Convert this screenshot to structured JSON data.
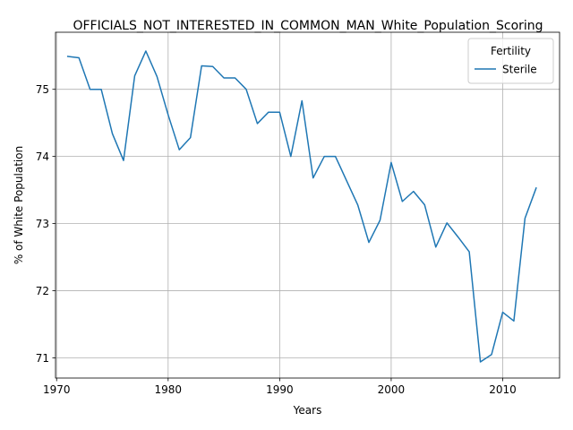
{
  "chart_data": {
    "type": "line",
    "title": "OFFICIALS_NOT_INTERESTED_IN_COMMON_MAN_White_Population_Scoring",
    "xlabel": "Years",
    "ylabel": "% of White Population",
    "xlim": [
      1969.9,
      2015.1
    ],
    "ylim": [
      70.7,
      75.85
    ],
    "xticks": [
      1970,
      1980,
      1990,
      2000,
      2010
    ],
    "yticks": [
      71,
      72,
      73,
      74,
      75
    ],
    "grid": true,
    "legend": {
      "title": "Fertility",
      "placement": "top-right"
    },
    "series": [
      {
        "name": "Sterile",
        "color": "#1f77b4",
        "x": [
          1971,
          1972,
          1973,
          1974,
          1975,
          1976,
          1977,
          1978,
          1979,
          1980,
          1981,
          1982,
          1983,
          1984,
          1985,
          1986,
          1987,
          1988,
          1989,
          1990,
          1991,
          1992,
          1993,
          1994,
          1995,
          1996,
          1997,
          1998,
          1999,
          2000,
          2001,
          2002,
          2003,
          2004,
          2005,
          2006,
          2007,
          2008,
          2009,
          2010,
          2011,
          2012,
          2013
        ],
        "y": [
          75.49,
          75.47,
          75.0,
          75.0,
          74.34,
          73.94,
          75.2,
          75.57,
          75.19,
          74.62,
          74.1,
          74.28,
          75.35,
          75.34,
          75.17,
          75.17,
          75.0,
          74.49,
          74.66,
          74.66,
          74.0,
          74.83,
          73.68,
          74.0,
          74.0,
          73.64,
          73.28,
          72.72,
          73.05,
          73.91,
          73.33,
          73.48,
          73.28,
          72.65,
          73.01,
          72.8,
          72.58,
          70.94,
          71.05,
          71.68,
          71.55,
          73.08,
          73.53
        ]
      }
    ]
  }
}
